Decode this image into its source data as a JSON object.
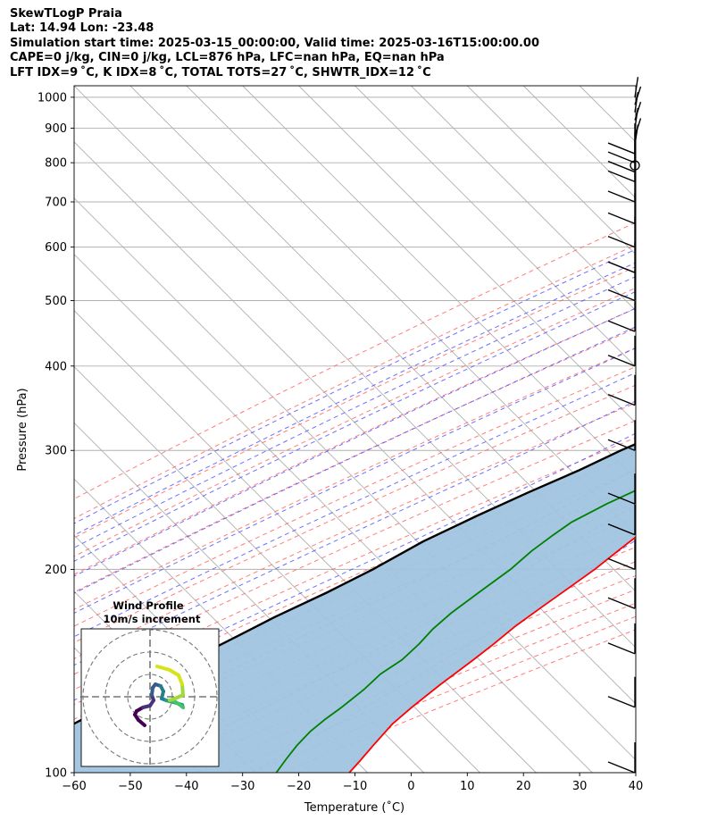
{
  "title": {
    "line1": "SkewTLogP Praia",
    "line2": "Lat: 14.94   Lon: -23.48",
    "line3": "Simulation start time: 2025-03-15_00:00:00, Valid time: 2025-03-16T15:00:00.00",
    "line4": "CAPE=0 j/kg, CIN=0 j/kg, LCL=876 hPa, LFC=nan hPa, EQ=nan hPa",
    "line5": "LFT IDX=9$^\\circ$C, K IDX=8$^\\circ$C, TOTAL TOTS=27$^\\circ$C, SHWTR_IDX=12$^\\circ$C"
  },
  "title_display": {
    "line5": "LFT IDX=9 ˚C, K IDX=8 ˚C, TOTAL TOTS=27 ˚C, SHWTR_IDX=12 ˚C"
  },
  "colors": {
    "temperature": "#ff0000",
    "dewpoint": "#008000",
    "parcel": "#000000",
    "cape_fill": "#a0c4e0",
    "dry_adiabat": "#ff5c5c",
    "moist_adiabat": "#4b4bff",
    "mixing_ratio": "#8a2be2",
    "isotherm": "#b0b0b0"
  },
  "chart_data": [
    {
      "type": "line",
      "subtype": "skew-t log-p",
      "xlabel": "Temperature ($^\\circ$C)",
      "xlabel_display": "Temperature (˚C)",
      "ylabel": "Pressure (hPa)",
      "xlim": [
        -60,
        40
      ],
      "ylim": [
        1040,
        100
      ],
      "y_scale": "log",
      "x_ticks": [
        "−60",
        "−50",
        "−40",
        "−30",
        "−20",
        "−10",
        "0",
        "10",
        "20",
        "30",
        "40"
      ],
      "y_ticks": [
        "100",
        "200",
        "300",
        "400",
        "500",
        "600",
        "700",
        "800",
        "900",
        "1000"
      ],
      "grid": true,
      "series": [
        {
          "key": "temperature",
          "points": [
            [
              24,
              1010
            ],
            [
              22,
              975
            ],
            [
              24.5,
              950
            ],
            [
              26.3,
              920
            ],
            [
              27,
              900
            ],
            [
              26.5,
              855
            ],
            [
              24.5,
              820
            ],
            [
              22.5,
              778
            ],
            [
              20.5,
              745
            ],
            [
              19,
              715
            ],
            [
              17,
              680
            ],
            [
              15.5,
              640
            ],
            [
              15.2,
              625
            ],
            [
              15,
              600
            ],
            [
              15,
              580
            ],
            [
              15.3,
              550
            ],
            [
              15.5,
              525
            ],
            [
              15.3,
              505
            ],
            [
              15,
              490
            ],
            [
              13,
              450
            ],
            [
              11.3,
              400
            ],
            [
              10,
              370
            ],
            [
              8.5,
              345
            ],
            [
              7,
              322
            ],
            [
              5.4,
              300
            ],
            [
              3.4,
              280
            ],
            [
              0.7,
              255
            ],
            [
              -1.5,
              230
            ],
            [
              -2.5,
              215
            ],
            [
              -3.5,
              200
            ],
            [
              -5,
              186
            ],
            [
              -6.3,
              175
            ],
            [
              -7.5,
              165
            ],
            [
              -8.2,
              155
            ],
            [
              -9,
              147
            ],
            [
              -10.5,
              135
            ],
            [
              -11.5,
              125
            ],
            [
              -12,
              118
            ],
            [
              -11.6,
              110
            ],
            [
              -11.2,
              104
            ],
            [
              -11,
              100
            ]
          ]
        },
        {
          "key": "dewpoint",
          "points": [
            [
              15,
              1000
            ],
            [
              14.5,
              990
            ],
            [
              13.5,
              980
            ],
            [
              -1,
              965
            ],
            [
              -5,
              940
            ],
            [
              -2,
              915
            ],
            [
              1.5,
              890
            ],
            [
              5,
              860
            ],
            [
              7,
              825
            ],
            [
              8.5,
              790
            ],
            [
              9.5,
              770
            ],
            [
              10,
              755
            ],
            [
              9,
              740
            ],
            [
              6,
              720
            ],
            [
              3,
              700
            ],
            [
              0,
              670
            ],
            [
              -1.2,
              640
            ],
            [
              -1.5,
              630
            ],
            [
              -2,
              620
            ],
            [
              -4,
              610
            ],
            [
              -7,
              600
            ],
            [
              -12,
              575
            ],
            [
              -18,
              550
            ],
            [
              -24,
              525
            ],
            [
              -31,
              500
            ],
            [
              -28,
              480
            ],
            [
              -24,
              460
            ],
            [
              -20,
              440
            ],
            [
              -19,
              420
            ],
            [
              -18,
              400
            ],
            [
              -17,
              380
            ],
            [
              -16,
              360
            ],
            [
              -12,
              340
            ],
            [
              -9,
              320
            ],
            [
              -8,
              300
            ],
            [
              -7,
              285
            ],
            [
              -7.8,
              275
            ],
            [
              -9.5,
              265
            ],
            [
              -13,
              250
            ],
            [
              -16,
              235
            ],
            [
              -17,
              225
            ],
            [
              -18,
              213
            ],
            [
              -18.5,
              200
            ],
            [
              -20,
              185
            ],
            [
              -21.3,
              172
            ],
            [
              -21.7,
              163
            ],
            [
              -21.5,
              155
            ],
            [
              -21.7,
              147
            ],
            [
              -23,
              140
            ],
            [
              -23.2,
              133
            ],
            [
              -24,
              125
            ],
            [
              -24.8,
              120
            ],
            [
              -25.3,
              115
            ],
            [
              -25.2,
              110
            ],
            [
              -24.7,
              105
            ],
            [
              -24,
              100
            ]
          ]
        },
        {
          "key": "parcel",
          "points": [
            [
              24,
              1010
            ],
            [
              17,
              876
            ],
            [
              16,
              850
            ],
            [
              14.5,
              800
            ],
            [
              13.2,
              750
            ],
            [
              12,
              700
            ],
            [
              10.5,
              650
            ],
            [
              8.7,
              600
            ],
            [
              6.5,
              550
            ],
            [
              3.5,
              500
            ],
            [
              0,
              450
            ],
            [
              -4.5,
              400
            ],
            [
              -7.5,
              370
            ],
            [
              -11,
              350
            ],
            [
              -15.5,
              320
            ],
            [
              -20,
              300
            ],
            [
              -24,
              280
            ],
            [
              -29,
              260
            ],
            [
              -34,
              240
            ],
            [
              -39,
              220
            ],
            [
              -43,
              200
            ],
            [
              -47,
              185
            ],
            [
              -52,
              170
            ],
            [
              -55,
              160
            ],
            [
              -60,
              145
            ],
            [
              -64,
              132
            ],
            [
              -68,
              120
            ],
            [
              -72,
              110
            ],
            [
              -76,
              100
            ]
          ]
        }
      ],
      "wind_barbs": {
        "pressures": [
          1000,
          975,
          950,
          925,
          900,
          875,
          850,
          825,
          800,
          775,
          750,
          700,
          650,
          600,
          550,
          500,
          450,
          400,
          350,
          300,
          250,
          225,
          200,
          175,
          150,
          125,
          100
        ]
      }
    },
    {
      "type": "line",
      "subtype": "hodograph",
      "title": "Wind Profile",
      "subtitle": "10m/s increment"
    }
  ]
}
